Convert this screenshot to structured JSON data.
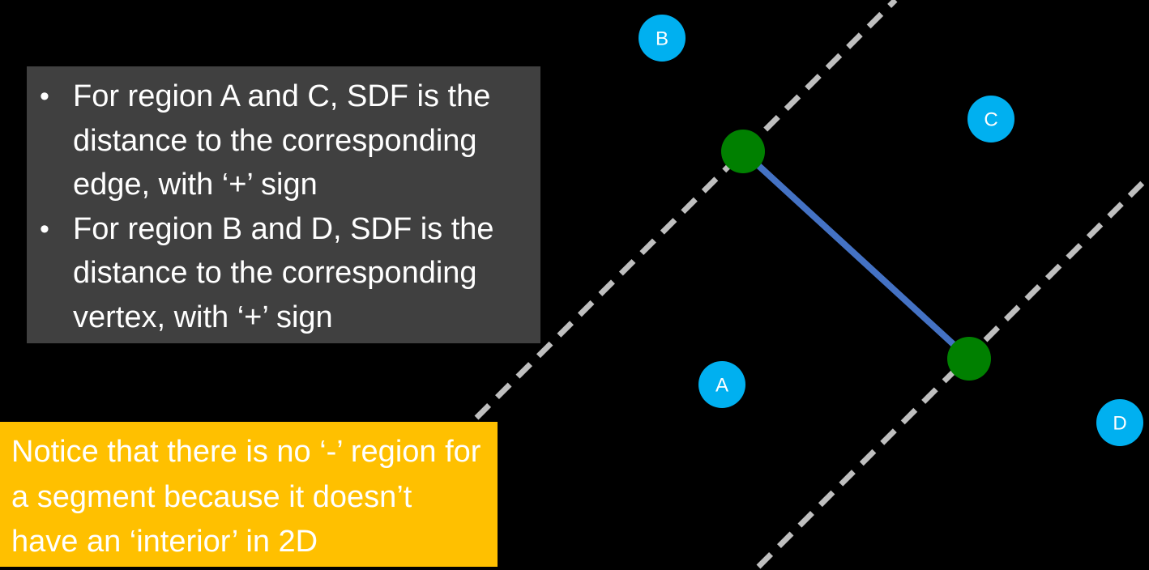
{
  "info_box": {
    "bullets": [
      "For region A and C, SDF is the distance to the corresponding edge, with ‘+’ sign",
      "For region B and D, SDF is the distance to the corresponding vertex, with ‘+’ sign"
    ],
    "bullet_glyph": "•",
    "background": "#404040"
  },
  "notice_box": {
    "text": "Notice that there is no ‘-’ region for a segment because it doesn’t have an ‘interior’ in 2D",
    "background": "#ffc000"
  },
  "diagram": {
    "segment_color": "#4472c4",
    "vertex_color": "#008000",
    "divider_color": "#bfbfbf",
    "region_badge_color": "#00b0f0",
    "regions": [
      "A",
      "B",
      "C",
      "D"
    ]
  }
}
